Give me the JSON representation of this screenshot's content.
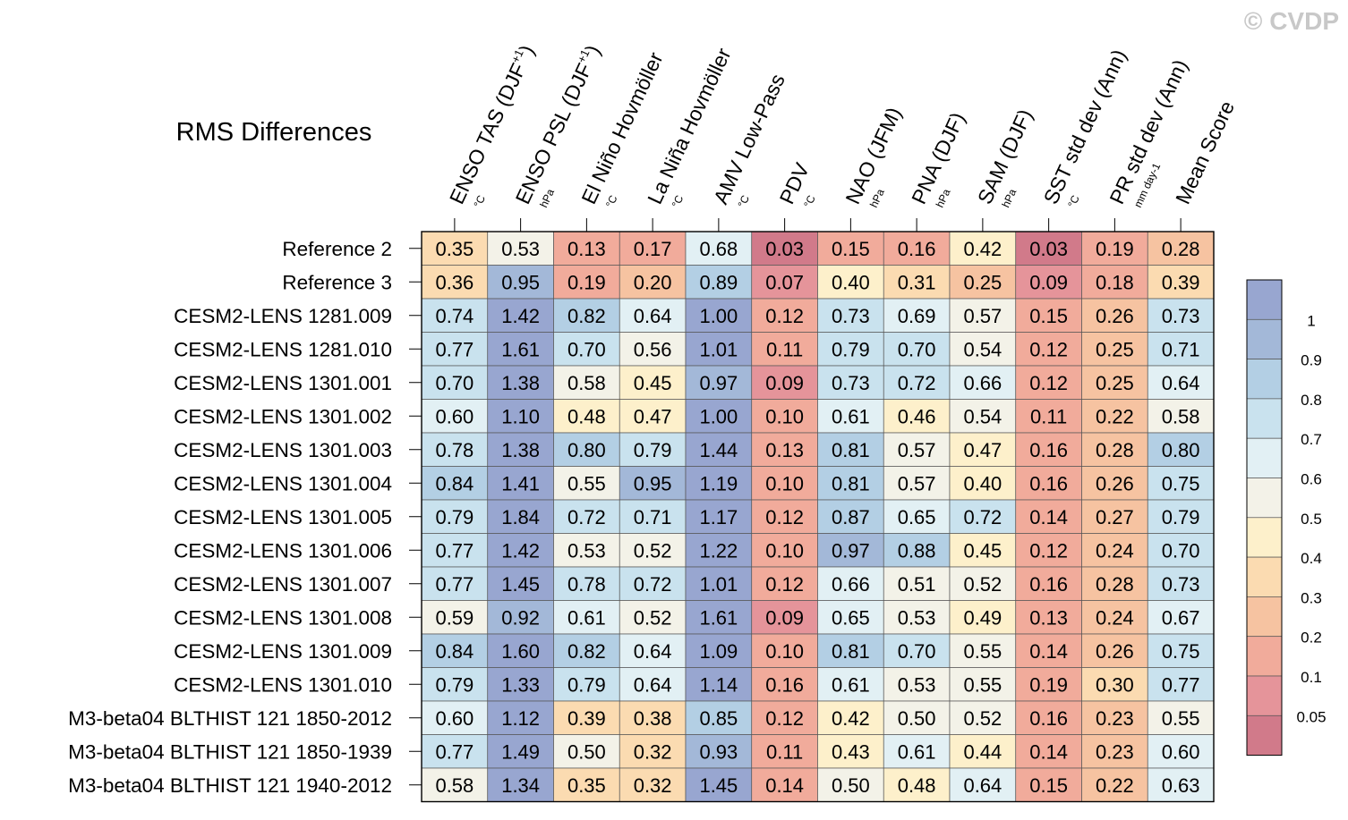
{
  "watermark": "© CVDP",
  "chart_data": {
    "type": "heatmap",
    "title": "RMS Differences",
    "columns": [
      {
        "label": "ENSO TAS (DJF",
        "sup": "+1",
        "tail": ")",
        "unit": "°C"
      },
      {
        "label": "ENSO PSL (DJF",
        "sup": "+1",
        "tail": ")",
        "unit": "hPa"
      },
      {
        "label": "El Niño Hovmöller",
        "sup": "",
        "tail": "",
        "unit": "°C"
      },
      {
        "label": "La Niña Hovmöller",
        "sup": "",
        "tail": "",
        "unit": "°C"
      },
      {
        "label": "AMV Low-Pass",
        "sup": "",
        "tail": "",
        "unit": "°C"
      },
      {
        "label": "PDV",
        "sup": "",
        "tail": "",
        "unit": "°C"
      },
      {
        "label": "NAO (JFM)",
        "sup": "",
        "tail": "",
        "unit": "hPa"
      },
      {
        "label": "PNA (DJF)",
        "sup": "",
        "tail": "",
        "unit": "hPa"
      },
      {
        "label": "SAM (DJF)",
        "sup": "",
        "tail": "",
        "unit": "hPa"
      },
      {
        "label": "SST std dev (Ann)",
        "sup": "",
        "tail": "",
        "unit": "°C"
      },
      {
        "label": "PR std dev (Ann)",
        "sup": "",
        "tail": "",
        "unit": "mm day-1"
      },
      {
        "label": "Mean Score",
        "sup": "",
        "tail": "",
        "unit": ""
      }
    ],
    "rows": [
      "Reference 2",
      "Reference 3",
      "CESM2-LENS 1281.009",
      "CESM2-LENS 1281.010",
      "CESM2-LENS 1301.001",
      "CESM2-LENS 1301.002",
      "CESM2-LENS 1301.003",
      "CESM2-LENS 1301.004",
      "CESM2-LENS 1301.005",
      "CESM2-LENS 1301.006",
      "CESM2-LENS 1301.007",
      "CESM2-LENS 1301.008",
      "CESM2-LENS 1301.009",
      "CESM2-LENS 1301.010",
      "M3-beta04 BLTHIST 121 1850-2012",
      "M3-beta04 BLTHIST 121 1850-1939",
      "M3-beta04 BLTHIST 121 1940-2012"
    ],
    "values": [
      [
        "0.35",
        "0.53",
        "0.13",
        "0.17",
        "0.68",
        "0.03",
        "0.15",
        "0.16",
        "0.42",
        "0.03",
        "0.19",
        "0.28"
      ],
      [
        "0.36",
        "0.95",
        "0.19",
        "0.20",
        "0.89",
        "0.07",
        "0.40",
        "0.31",
        "0.25",
        "0.09",
        "0.18",
        "0.39"
      ],
      [
        "0.74",
        "1.42",
        "0.82",
        "0.64",
        "1.00",
        "0.12",
        "0.73",
        "0.69",
        "0.57",
        "0.15",
        "0.26",
        "0.73"
      ],
      [
        "0.77",
        "1.61",
        "0.70",
        "0.56",
        "1.01",
        "0.11",
        "0.79",
        "0.70",
        "0.54",
        "0.12",
        "0.25",
        "0.71"
      ],
      [
        "0.70",
        "1.38",
        "0.58",
        "0.45",
        "0.97",
        "0.09",
        "0.73",
        "0.72",
        "0.66",
        "0.12",
        "0.25",
        "0.64"
      ],
      [
        "0.60",
        "1.10",
        "0.48",
        "0.47",
        "1.00",
        "0.10",
        "0.61",
        "0.46",
        "0.54",
        "0.11",
        "0.22",
        "0.58"
      ],
      [
        "0.78",
        "1.38",
        "0.80",
        "0.79",
        "1.44",
        "0.13",
        "0.81",
        "0.57",
        "0.47",
        "0.16",
        "0.28",
        "0.80"
      ],
      [
        "0.84",
        "1.41",
        "0.55",
        "0.95",
        "1.19",
        "0.10",
        "0.81",
        "0.57",
        "0.40",
        "0.16",
        "0.26",
        "0.75"
      ],
      [
        "0.79",
        "1.84",
        "0.72",
        "0.71",
        "1.17",
        "0.12",
        "0.87",
        "0.65",
        "0.72",
        "0.14",
        "0.27",
        "0.79"
      ],
      [
        "0.77",
        "1.42",
        "0.53",
        "0.52",
        "1.22",
        "0.10",
        "0.97",
        "0.88",
        "0.45",
        "0.12",
        "0.24",
        "0.70"
      ],
      [
        "0.77",
        "1.45",
        "0.78",
        "0.72",
        "1.01",
        "0.12",
        "0.66",
        "0.51",
        "0.52",
        "0.16",
        "0.28",
        "0.73"
      ],
      [
        "0.59",
        "0.92",
        "0.61",
        "0.52",
        "1.61",
        "0.09",
        "0.65",
        "0.53",
        "0.49",
        "0.13",
        "0.24",
        "0.67"
      ],
      [
        "0.84",
        "1.60",
        "0.82",
        "0.64",
        "1.09",
        "0.10",
        "0.81",
        "0.70",
        "0.55",
        "0.14",
        "0.26",
        "0.75"
      ],
      [
        "0.79",
        "1.33",
        "0.79",
        "0.64",
        "1.14",
        "0.16",
        "0.61",
        "0.53",
        "0.55",
        "0.19",
        "0.30",
        "0.77"
      ],
      [
        "0.60",
        "1.12",
        "0.39",
        "0.38",
        "0.85",
        "0.12",
        "0.42",
        "0.50",
        "0.52",
        "0.16",
        "0.23",
        "0.55"
      ],
      [
        "0.77",
        "1.49",
        "0.50",
        "0.32",
        "0.93",
        "0.11",
        "0.43",
        "0.61",
        "0.44",
        "0.14",
        "0.23",
        "0.60"
      ],
      [
        "0.58",
        "1.34",
        "0.35",
        "0.32",
        "1.45",
        "0.14",
        "0.50",
        "0.48",
        "0.64",
        "0.15",
        "0.22",
        "0.63"
      ]
    ],
    "colorbar": {
      "thresholds": [
        0.05,
        0.1,
        0.2,
        0.3,
        0.4,
        0.5,
        0.6,
        0.7,
        0.8,
        0.9,
        1
      ],
      "labels": [
        "1",
        "0.9",
        "0.8",
        "0.7",
        "0.6",
        "0.5",
        "0.4",
        "0.3",
        "0.2",
        "0.1",
        "0.05"
      ],
      "colors": [
        "#d17a8a",
        "#e5949a",
        "#f1ab9b",
        "#f6c3a1",
        "#fbdbb1",
        "#fdf0cb",
        "#f3f2e8",
        "#e2f0f4",
        "#c9e2ee",
        "#b3cfe4",
        "#a3b8d8",
        "#98a6d0"
      ]
    }
  }
}
